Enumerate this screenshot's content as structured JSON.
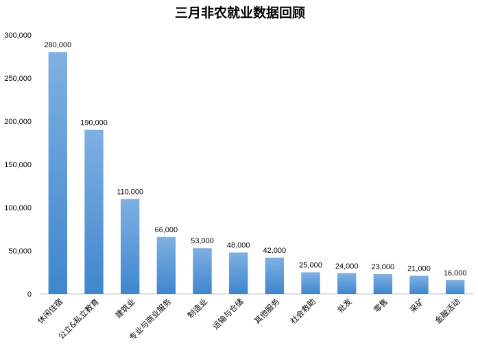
{
  "chart_data": {
    "type": "bar",
    "title": "三月非农就业数据回顾",
    "xlabel": "",
    "ylabel": "",
    "ylim": [
      0,
      300000
    ],
    "yticks": [
      "0",
      "50,000",
      "100,000",
      "150,000",
      "200,000",
      "250,000",
      "300,000"
    ],
    "grid": false,
    "legend": "none",
    "bar_color_top": "#7FB0E2",
    "bar_color_bottom": "#3F86CE",
    "categories": [
      "休闲住宿",
      "公立&私立教育",
      "建筑业",
      "专业与商业服务",
      "制造业",
      "运输与仓储",
      "其他服务",
      "社会救助",
      "批发",
      "零售",
      "采矿",
      "金融活动"
    ],
    "values": [
      280000,
      190000,
      110000,
      66000,
      53000,
      48000,
      42000,
      25000,
      24000,
      23000,
      21000,
      16000
    ],
    "data_labels": [
      "280,000",
      "190,000",
      "110,000",
      "66,000",
      "53,000",
      "48,000",
      "42,000",
      "25,000",
      "24,000",
      "23,000",
      "21,000",
      "16,000"
    ]
  }
}
